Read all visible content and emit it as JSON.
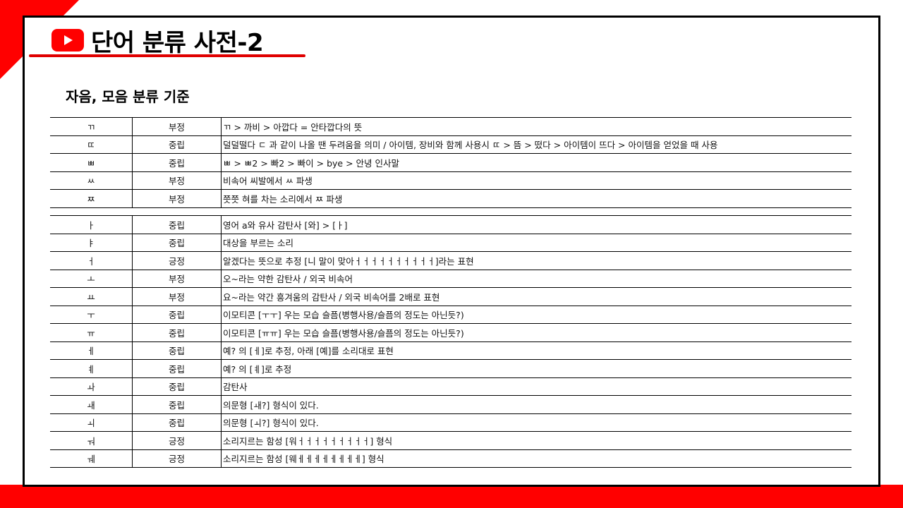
{
  "header": {
    "title": "단어 분류 사전-2",
    "subtitle": "자음, 모음 분류 기준"
  },
  "colors": {
    "accent": "#ff0000",
    "frame": "#000000"
  },
  "icons": {
    "logo": "youtube-play-icon"
  },
  "tables": {
    "consonants": [
      {
        "letter": "ㄲ",
        "sentiment": "부정",
        "description": "ㄲ > 까비 > 아깝다 = 안타깝다의 뜻"
      },
      {
        "letter": "ㄸ",
        "sentiment": "중립",
        "description": "덜덜떨다 ㄷ 과 같이 나올 땐 두려움을 의미 / 아이템, 장비와 함께 사용시 ㄸ > 뜸 > 떴다 > 아이템이 뜨다 > 아이템을 얻었을 때 사용"
      },
      {
        "letter": "ㅃ",
        "sentiment": "중립",
        "description": "ㅃ > ㅃ2 > 빠2 > 빠이 > bye > 안녕 인사말"
      },
      {
        "letter": "ㅆ",
        "sentiment": "부정",
        "description": "비속어 씨발에서 ㅆ 파생"
      },
      {
        "letter": "ㅉ",
        "sentiment": "부정",
        "description": "쯧쯧 혀를 차는 소리에서 ㅉ 파생"
      }
    ],
    "vowels": [
      {
        "letter": "ㅏ",
        "sentiment": "중립",
        "description": "영어 a와 유사 감탄사 [와] > [ㅏ]"
      },
      {
        "letter": "ㅑ",
        "sentiment": "중립",
        "description": "대상을 부르는 소리"
      },
      {
        "letter": "ㅓ",
        "sentiment": "긍정",
        "description": "알겠다는 뜻으로 추정 [니 말이 맞아ㅓㅓㅓㅓㅓㅓㅓㅓㅓㅓ]라는 표현"
      },
      {
        "letter": "ㅗ",
        "sentiment": "부정",
        "description": "오~라는 약한 감탄사 / 외국 비속어"
      },
      {
        "letter": "ㅛ",
        "sentiment": "부정",
        "description": "요~라는 약간 흥겨움의 감탄사 / 외국 비속어를 2배로 표현"
      },
      {
        "letter": "ㅜ",
        "sentiment": "중립",
        "description": "이모티콘 [ㅜㅜ] 우는 모습 슬픔(병행사용/슬픔의 정도는 아닌듯?)"
      },
      {
        "letter": "ㅠ",
        "sentiment": "중립",
        "description": "이모티콘 [ㅠㅠ] 우는 모습 슬픔(병행사용/슬픔의 정도는 아닌듯?)"
      },
      {
        "letter": "ㅔ",
        "sentiment": "중립",
        "description": "예? 의 [ㅔ]로 추정, 아래 [예]를 소리대로 표현"
      },
      {
        "letter": "ㅖ",
        "sentiment": "중립",
        "description": "예? 의 [ㅖ]로 추정"
      },
      {
        "letter": "ㅘ",
        "sentiment": "중립",
        "description": "감탄사"
      },
      {
        "letter": "ㅙ",
        "sentiment": "중립",
        "description": "의문형 [ㅙ?] 형식이 있다."
      },
      {
        "letter": "ㅚ",
        "sentiment": "중립",
        "description": "의문형 [ㅚ?] 형식이 있다."
      },
      {
        "letter": "ㅝ",
        "sentiment": "긍정",
        "description": "소리지르는 함성 [워ㅓㅓㅓㅓㅓㅓㅓㅓㅓ] 형식"
      },
      {
        "letter": "ㅞ",
        "sentiment": "긍정",
        "description": "소리지르는 함성 [웨ㅔㅔㅔㅔㅔㅔㅔㅔ] 형식"
      }
    ]
  }
}
